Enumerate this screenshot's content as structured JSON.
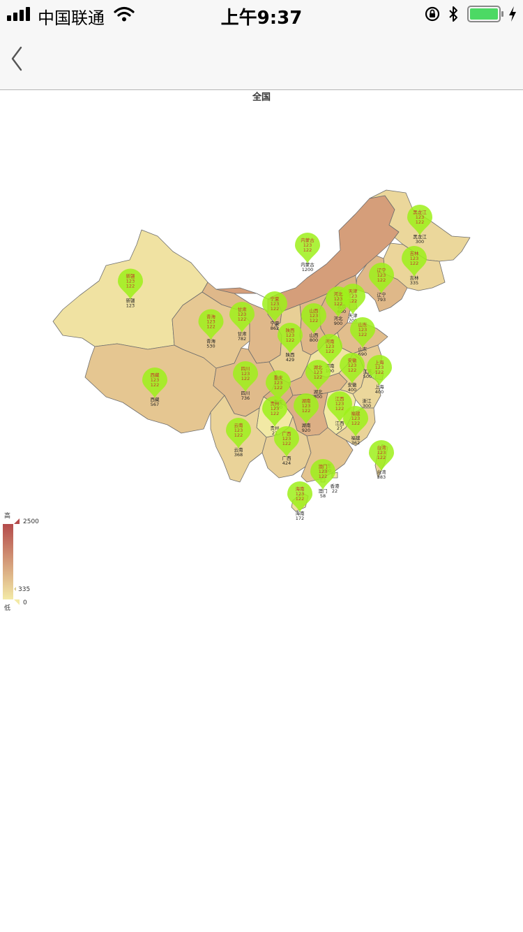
{
  "status_bar": {
    "carrier": "中国联通",
    "time": "上午9:37"
  },
  "chart_data": {
    "type": "map",
    "title": "全国",
    "visual_map": {
      "min": 0,
      "max": 2500,
      "high_label": "高",
      "low_label": "低",
      "max_text": "2500",
      "min_text": "0",
      "handle_text": "335",
      "color_high": "#b44b4b",
      "color_low": "#f3eaa6"
    },
    "regions": [
      {
        "name": "新疆",
        "value": 123
      },
      {
        "name": "西藏",
        "value": 567
      },
      {
        "name": "青海",
        "value": 530
      },
      {
        "name": "甘肃",
        "value": 782
      },
      {
        "name": "宁夏",
        "value": 862
      },
      {
        "name": "内蒙古",
        "value": 1200
      },
      {
        "name": "黑龙江",
        "value": 300
      },
      {
        "name": "吉林",
        "value": 335
      },
      {
        "name": "辽宁",
        "value": 793
      },
      {
        "name": "北京",
        "value": 600
      },
      {
        "name": "天津",
        "value": 700
      },
      {
        "name": "河北",
        "value": 900
      },
      {
        "name": "山西",
        "value": 800
      },
      {
        "name": "山东",
        "value": 690
      },
      {
        "name": "陕西",
        "value": 429
      },
      {
        "name": "河南",
        "value": 100
      },
      {
        "name": "四川",
        "value": 736
      },
      {
        "name": "重庆",
        "value": 900
      },
      {
        "name": "湖北",
        "value": 800
      },
      {
        "name": "安徽",
        "value": 400
      },
      {
        "name": "江苏",
        "value": 500
      },
      {
        "name": "上海",
        "value": 400
      },
      {
        "name": "浙江",
        "value": 300
      },
      {
        "name": "江西",
        "value": 27
      },
      {
        "name": "湖南",
        "value": 920
      },
      {
        "name": "贵州",
        "value": 21
      },
      {
        "name": "云南",
        "value": 368
      },
      {
        "name": "广西",
        "value": 424
      },
      {
        "name": "广东",
        "value": 600
      },
      {
        "name": "福建",
        "value": 362
      },
      {
        "name": "台湾",
        "value": 383
      },
      {
        "name": "海南",
        "value": 172
      },
      {
        "name": "香港",
        "value": 22
      },
      {
        "name": "澳门",
        "value": 58
      }
    ],
    "markers": [
      {
        "name": "新疆",
        "line1": "123",
        "line2": "122"
      },
      {
        "name": "西藏",
        "line1": "123",
        "line2": "122"
      },
      {
        "name": "青海",
        "line1": "123",
        "line2": "122"
      },
      {
        "name": "甘肃",
        "line1": "123",
        "line2": "122"
      },
      {
        "name": "宁夏",
        "line1": "123",
        "line2": "122"
      },
      {
        "name": "内蒙古",
        "line1": "123",
        "line2": "122"
      },
      {
        "name": "黑龙江",
        "line1": "123",
        "line2": "122"
      },
      {
        "name": "吉林",
        "line1": "123",
        "line2": "122"
      },
      {
        "name": "辽宁",
        "line1": "123",
        "line2": "122"
      },
      {
        "name": "天津",
        "line1": "123",
        "line2": "122"
      },
      {
        "name": "河北",
        "line1": "123",
        "line2": "122"
      },
      {
        "name": "山西",
        "line1": "123",
        "line2": "122"
      },
      {
        "name": "山东",
        "line1": "123",
        "line2": "122"
      },
      {
        "name": "陕西",
        "line1": "123",
        "line2": "122"
      },
      {
        "name": "河南",
        "line1": "123",
        "line2": "122"
      },
      {
        "name": "四川",
        "line1": "123",
        "line2": "122"
      },
      {
        "name": "重庆",
        "line1": "123",
        "line2": "122"
      },
      {
        "name": "湖北",
        "line1": "123",
        "line2": "122"
      },
      {
        "name": "安徽",
        "line1": "123",
        "line2": "122"
      },
      {
        "name": "上海",
        "line1": "123",
        "line2": "122"
      },
      {
        "name": "江西",
        "line1": "123",
        "line2": "122"
      },
      {
        "name": "湖南",
        "line1": "123",
        "line2": "122"
      },
      {
        "name": "贵州",
        "line1": "123",
        "line2": "122"
      },
      {
        "name": "云南",
        "line1": "123",
        "line2": "122"
      },
      {
        "name": "广西",
        "line1": "123",
        "line2": "122"
      },
      {
        "name": "福建",
        "line1": "123",
        "line2": "122"
      },
      {
        "name": "台湾",
        "line1": "123",
        "line2": "122"
      },
      {
        "name": "澳门",
        "line1": "123",
        "line2": "122"
      },
      {
        "name": "海南",
        "line1": "123",
        "line2": "122"
      }
    ]
  }
}
